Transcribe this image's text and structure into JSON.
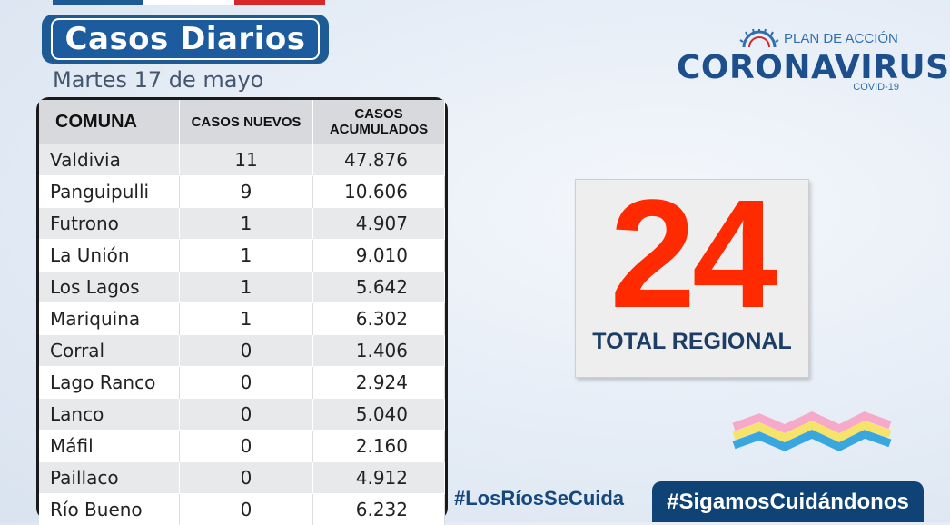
{
  "header": {
    "title": "Casos Diarios",
    "date": "Martes 17 de mayo",
    "flag_colors": [
      "#1e5a93",
      "#ffffff",
      "#d62828"
    ]
  },
  "table": {
    "headers": {
      "comuna": "COMUNA",
      "nuevos": "CASOS NUEVOS",
      "acumulados_line1": "CASOS",
      "acumulados_line2": "ACUMULADOS"
    },
    "rows": [
      {
        "comuna": "Valdivia",
        "nuevos": "11",
        "acumulados": "47.876"
      },
      {
        "comuna": "Panguipulli",
        "nuevos": "9",
        "acumulados": "10.606"
      },
      {
        "comuna": "Futrono",
        "nuevos": "1",
        "acumulados": "4.907"
      },
      {
        "comuna": "La Unión",
        "nuevos": "1",
        "acumulados": "9.010"
      },
      {
        "comuna": "Los Lagos",
        "nuevos": "1",
        "acumulados": "5.642"
      },
      {
        "comuna": "Mariquina",
        "nuevos": "1",
        "acumulados": "6.302"
      },
      {
        "comuna": "Corral",
        "nuevos": "0",
        "acumulados": "1.406"
      },
      {
        "comuna": "Lago Ranco",
        "nuevos": "0",
        "acumulados": "2.924"
      },
      {
        "comuna": "Lanco",
        "nuevos": "0",
        "acumulados": "5.040"
      },
      {
        "comuna": "Máfil",
        "nuevos": "0",
        "acumulados": "2.160"
      },
      {
        "comuna": "Paillaco",
        "nuevos": "0",
        "acumulados": "4.912"
      },
      {
        "comuna": "Río Bueno",
        "nuevos": "0",
        "acumulados": "6.232"
      }
    ]
  },
  "logo": {
    "plan": "PLAN DE ACCIÓN",
    "name": "CORONAVIRUS",
    "sub": "COVID-19",
    "icon": "virus-icon"
  },
  "total": {
    "value": "24",
    "label": "TOTAL REGIONAL",
    "color": "#ff2a00"
  },
  "footer": {
    "hashtag_left": "#LosRíosSeCuida",
    "hashtag_right": "#SigamosCuidándonos"
  }
}
